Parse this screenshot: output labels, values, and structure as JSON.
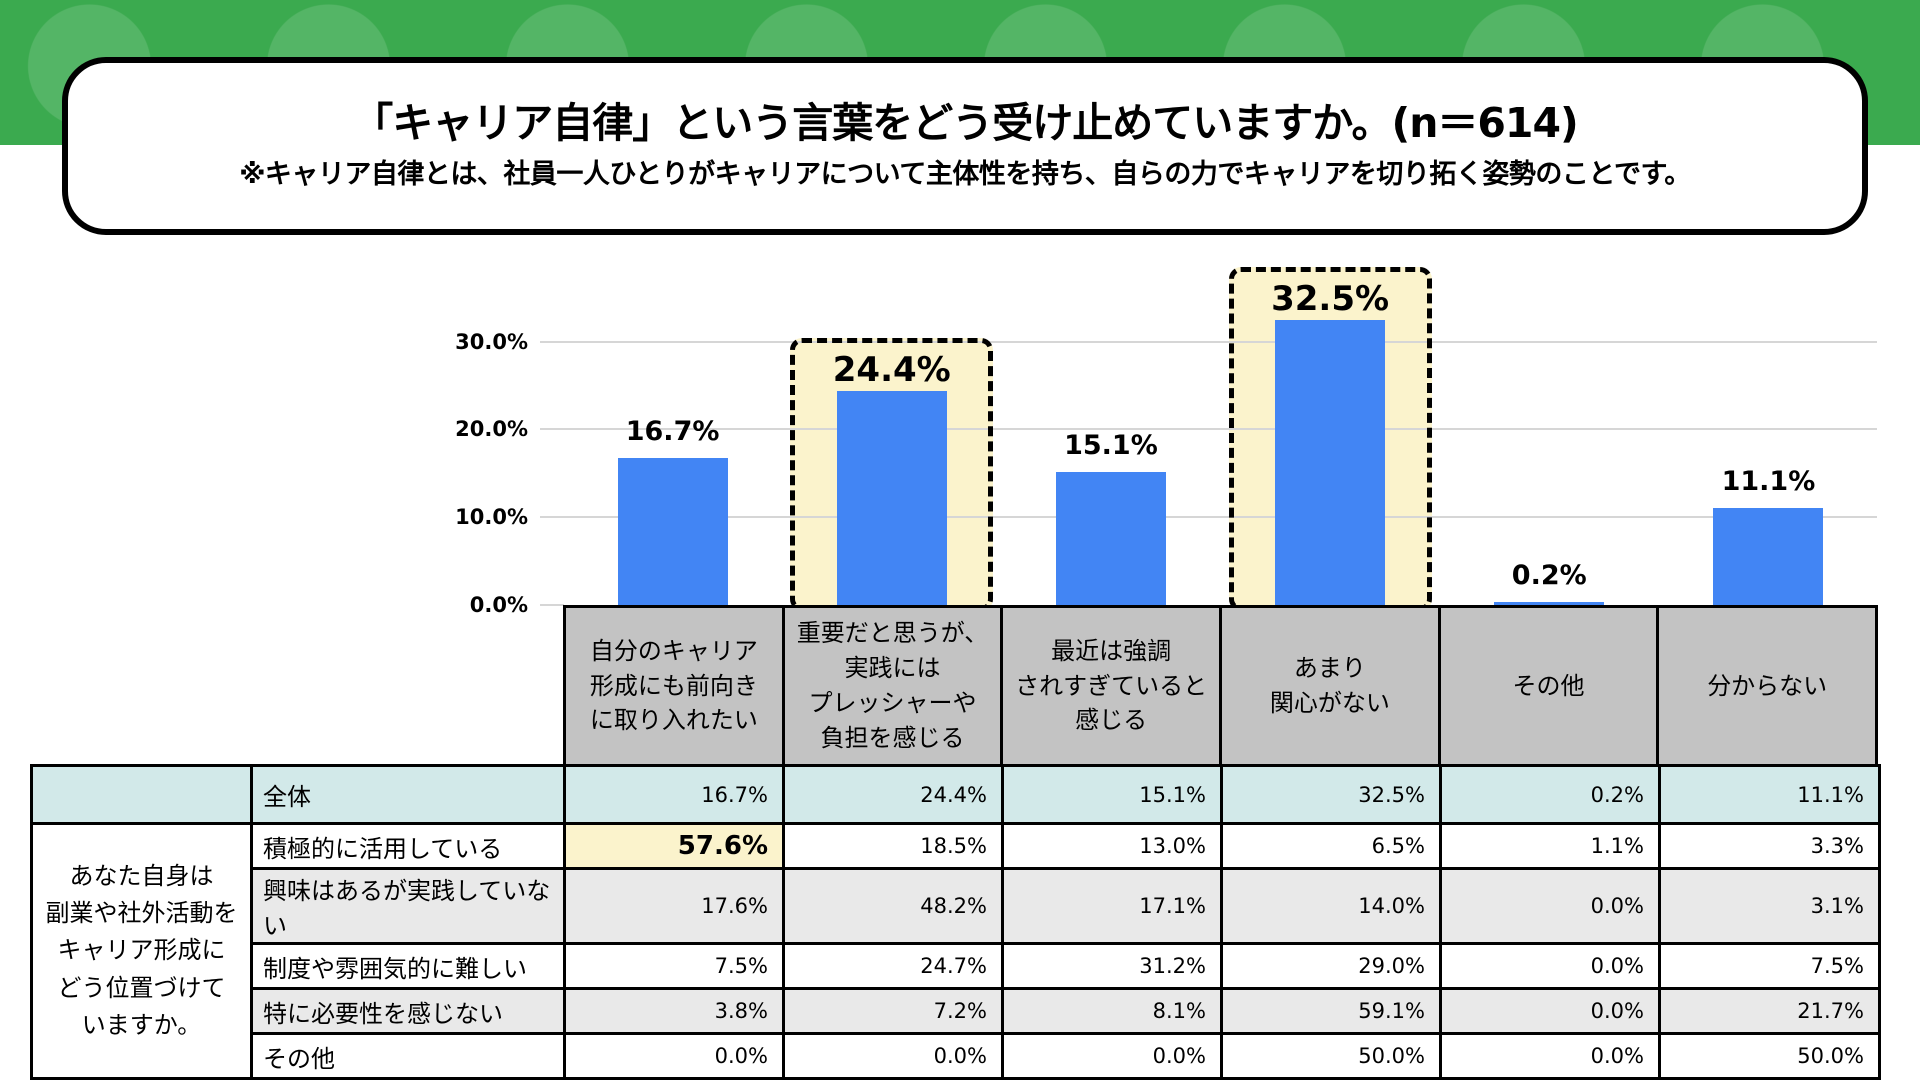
{
  "header": {
    "title": "「キャリア自律」という言葉をどう受け止めていますか。(n＝614)",
    "subtitle": "※キャリア自律とは、社員一人ひとりがキャリアについて主体性を持ち、自らの力でキャリアを切り拓く姿勢のことです。"
  },
  "colors": {
    "band_green": "#3BAA4F",
    "bar_blue": "#4285F4",
    "highlight_yellow": "#FBF3CC",
    "category_gray": "#C3C3C3",
    "overall_row_teal": "#D2E9E9",
    "stripe_gray": "#E9E9E9"
  },
  "chart_data": {
    "type": "bar",
    "title": "「キャリア自律」という言葉をどう受け止めていますか。(n＝614)",
    "xlabel": "",
    "ylabel": "",
    "ylim": [
      0,
      35
    ],
    "grid": true,
    "legend_position": "none",
    "categories": [
      "自分のキャリア形成にも前向きに取り入れたい",
      "重要だと思うが、実践にはプレッシャーや負担を感じる",
      "最近は強調されすぎていると感じる",
      "あまり関心がない",
      "その他",
      "分からない"
    ],
    "categories_multiline": [
      [
        "自分のキャリア",
        "形成にも前向き",
        "に取り入れたい"
      ],
      [
        "重要だと思うが、",
        "実践には",
        "プレッシャーや",
        "負担を感じる"
      ],
      [
        "最近は強調",
        "されすぎていると",
        "感じる"
      ],
      [
        "あまり",
        "関心がない"
      ],
      [
        "その他"
      ],
      [
        "分からない"
      ]
    ],
    "values": [
      16.7,
      24.4,
      15.1,
      32.5,
      0.2,
      11.1
    ],
    "value_labels": [
      "16.7%",
      "24.4%",
      "15.1%",
      "32.5%",
      "0.2%",
      "11.1%"
    ],
    "highlighted_indices": [
      1,
      3
    ],
    "y_ticks": [
      {
        "label": "0.0%",
        "value": 0
      },
      {
        "label": "10.0%",
        "value": 10
      },
      {
        "label": "20.0%",
        "value": 20
      },
      {
        "label": "30.0%",
        "value": 30
      }
    ]
  },
  "table": {
    "overall_row": {
      "label": "全体",
      "values": [
        "16.7%",
        "24.4%",
        "15.1%",
        "32.5%",
        "0.2%",
        "11.1%"
      ]
    },
    "group_label_lines": [
      "あなた自身は",
      "副業や社外活動を",
      "キャリア形成に",
      "どう位置づけて",
      "いますか。"
    ],
    "rows": [
      {
        "label": "積極的に活用している",
        "values": [
          "57.6%",
          "18.5%",
          "13.0%",
          "6.5%",
          "1.1%",
          "3.3%"
        ],
        "highlight_col": 0
      },
      {
        "label": "興味はあるが実践していない",
        "values": [
          "17.6%",
          "48.2%",
          "17.1%",
          "14.0%",
          "0.0%",
          "3.1%"
        ],
        "highlight_col": -1
      },
      {
        "label": "制度や雰囲気的に難しい",
        "values": [
          "7.5%",
          "24.7%",
          "31.2%",
          "29.0%",
          "0.0%",
          "7.5%"
        ],
        "highlight_col": -1
      },
      {
        "label": "特に必要性を感じない",
        "values": [
          "3.8%",
          "7.2%",
          "8.1%",
          "59.1%",
          "0.0%",
          "21.7%"
        ],
        "highlight_col": -1
      },
      {
        "label": "その他",
        "values": [
          "0.0%",
          "0.0%",
          "0.0%",
          "50.0%",
          "0.0%",
          "50.0%"
        ],
        "highlight_col": -1
      }
    ]
  }
}
